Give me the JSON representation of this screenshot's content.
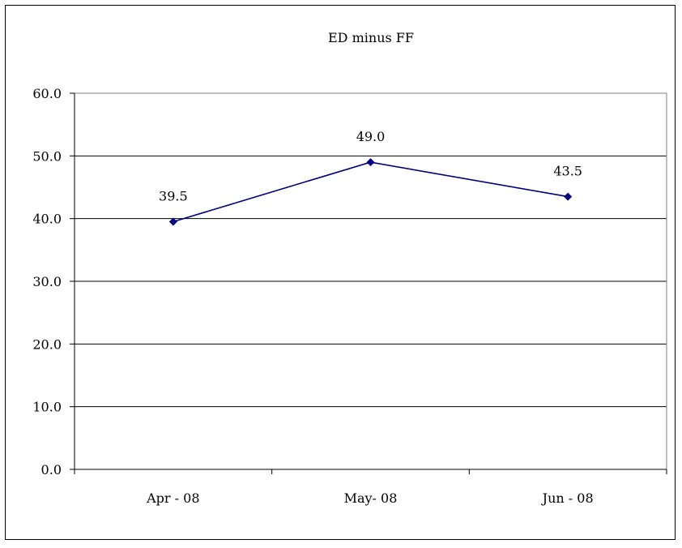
{
  "chart_data": {
    "type": "line",
    "title": "ED minus FF",
    "categories": [
      "Apr - 08",
      "May- 08",
      "Jun - 08"
    ],
    "series": [
      {
        "values": [
          39.5,
          49.0,
          43.5
        ],
        "labels": [
          "39.5",
          "49.0",
          "43.5"
        ]
      }
    ],
    "ylim": [
      0,
      60
    ],
    "yticks": [
      "0.0",
      "10.0",
      "20.0",
      "30.0",
      "40.0",
      "50.0",
      "60.0"
    ],
    "grid": true,
    "legend": "none",
    "colors": {
      "line": "#000080",
      "marker": "#000080",
      "grid": "#000000",
      "plot_border": "#808080"
    }
  }
}
